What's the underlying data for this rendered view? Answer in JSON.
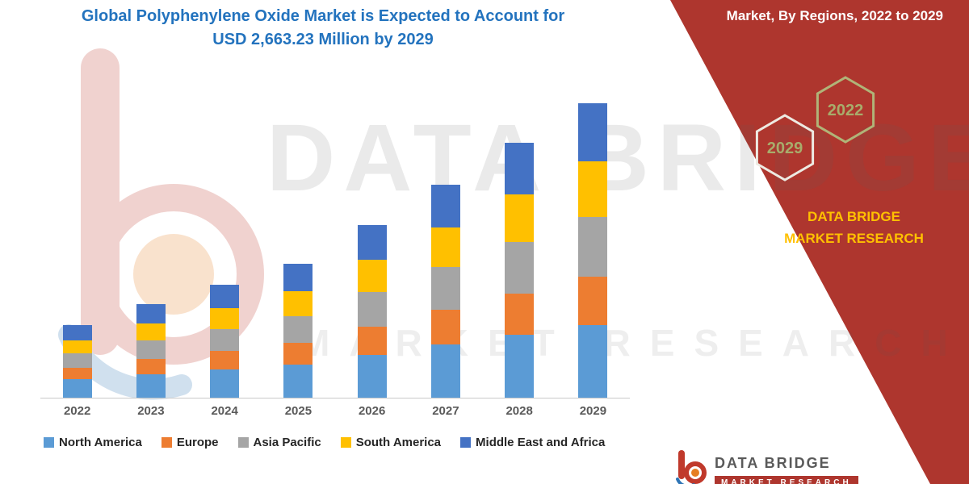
{
  "header": {
    "title_line1": "Global Polyphenylene Oxide Market is Expected to Account for",
    "title_line2": "USD 2,663.23 Million by 2029"
  },
  "side_panel": {
    "heading": "Market, By Regions, 2022 to 2029",
    "hexagons": [
      "2029",
      "2022"
    ],
    "brand_text": "DATA BRIDGE MARKET RESEARCH"
  },
  "watermark": {
    "line1": "DATA BRIDGE",
    "line2": "MARKET RESEARCH"
  },
  "footer": {
    "brand": "DATA BRIDGE",
    "ribbon": "MARKET RESEARCH"
  },
  "colors": {
    "panel_red": "#AE362E",
    "title_blue": "#2373BE",
    "brand_yellow": "#FFC000",
    "hex_text_olive": "#A8AC6B",
    "hex_stroke_white": "#EDEAE2",
    "hex_stroke_olive": "#B0B478"
  },
  "chart_data": {
    "type": "bar",
    "stacked": true,
    "title": "Global Polyphenylene Oxide Market is Expected to Account for USD 2,663.23 Million by 2029",
    "unit": "USD Million",
    "categories": [
      "2022",
      "2023",
      "2024",
      "2025",
      "2026",
      "2027",
      "2028",
      "2029"
    ],
    "series": [
      {
        "name": "North America",
        "color": "#5B9BD5",
        "values": [
          165,
          210,
          255,
          300,
          390,
          480,
          570,
          655
        ]
      },
      {
        "name": "Europe",
        "color": "#ED7D31",
        "values": [
          105,
          135,
          165,
          195,
          255,
          315,
          375,
          440
        ]
      },
      {
        "name": "Asia Pacific",
        "color": "#A5A5A5",
        "values": [
          130,
          165,
          200,
          240,
          315,
          390,
          465,
          540
        ]
      },
      {
        "name": "South America",
        "color": "#FFC000",
        "values": [
          120,
          155,
          190,
          225,
          295,
          360,
          430,
          505
        ]
      },
      {
        "name": "Middle East and Africa",
        "color": "#4472C4",
        "values": [
          135,
          175,
          210,
          245,
          315,
          390,
          465,
          523.23
        ]
      }
    ],
    "totals": [
      655,
      840,
      1020,
      1205,
      1570,
      1935,
      2305,
      2663.23
    ],
    "ylim": [
      0,
      2700
    ],
    "grid": false,
    "legend_position": "bottom",
    "xlabel": "",
    "ylabel": ""
  }
}
